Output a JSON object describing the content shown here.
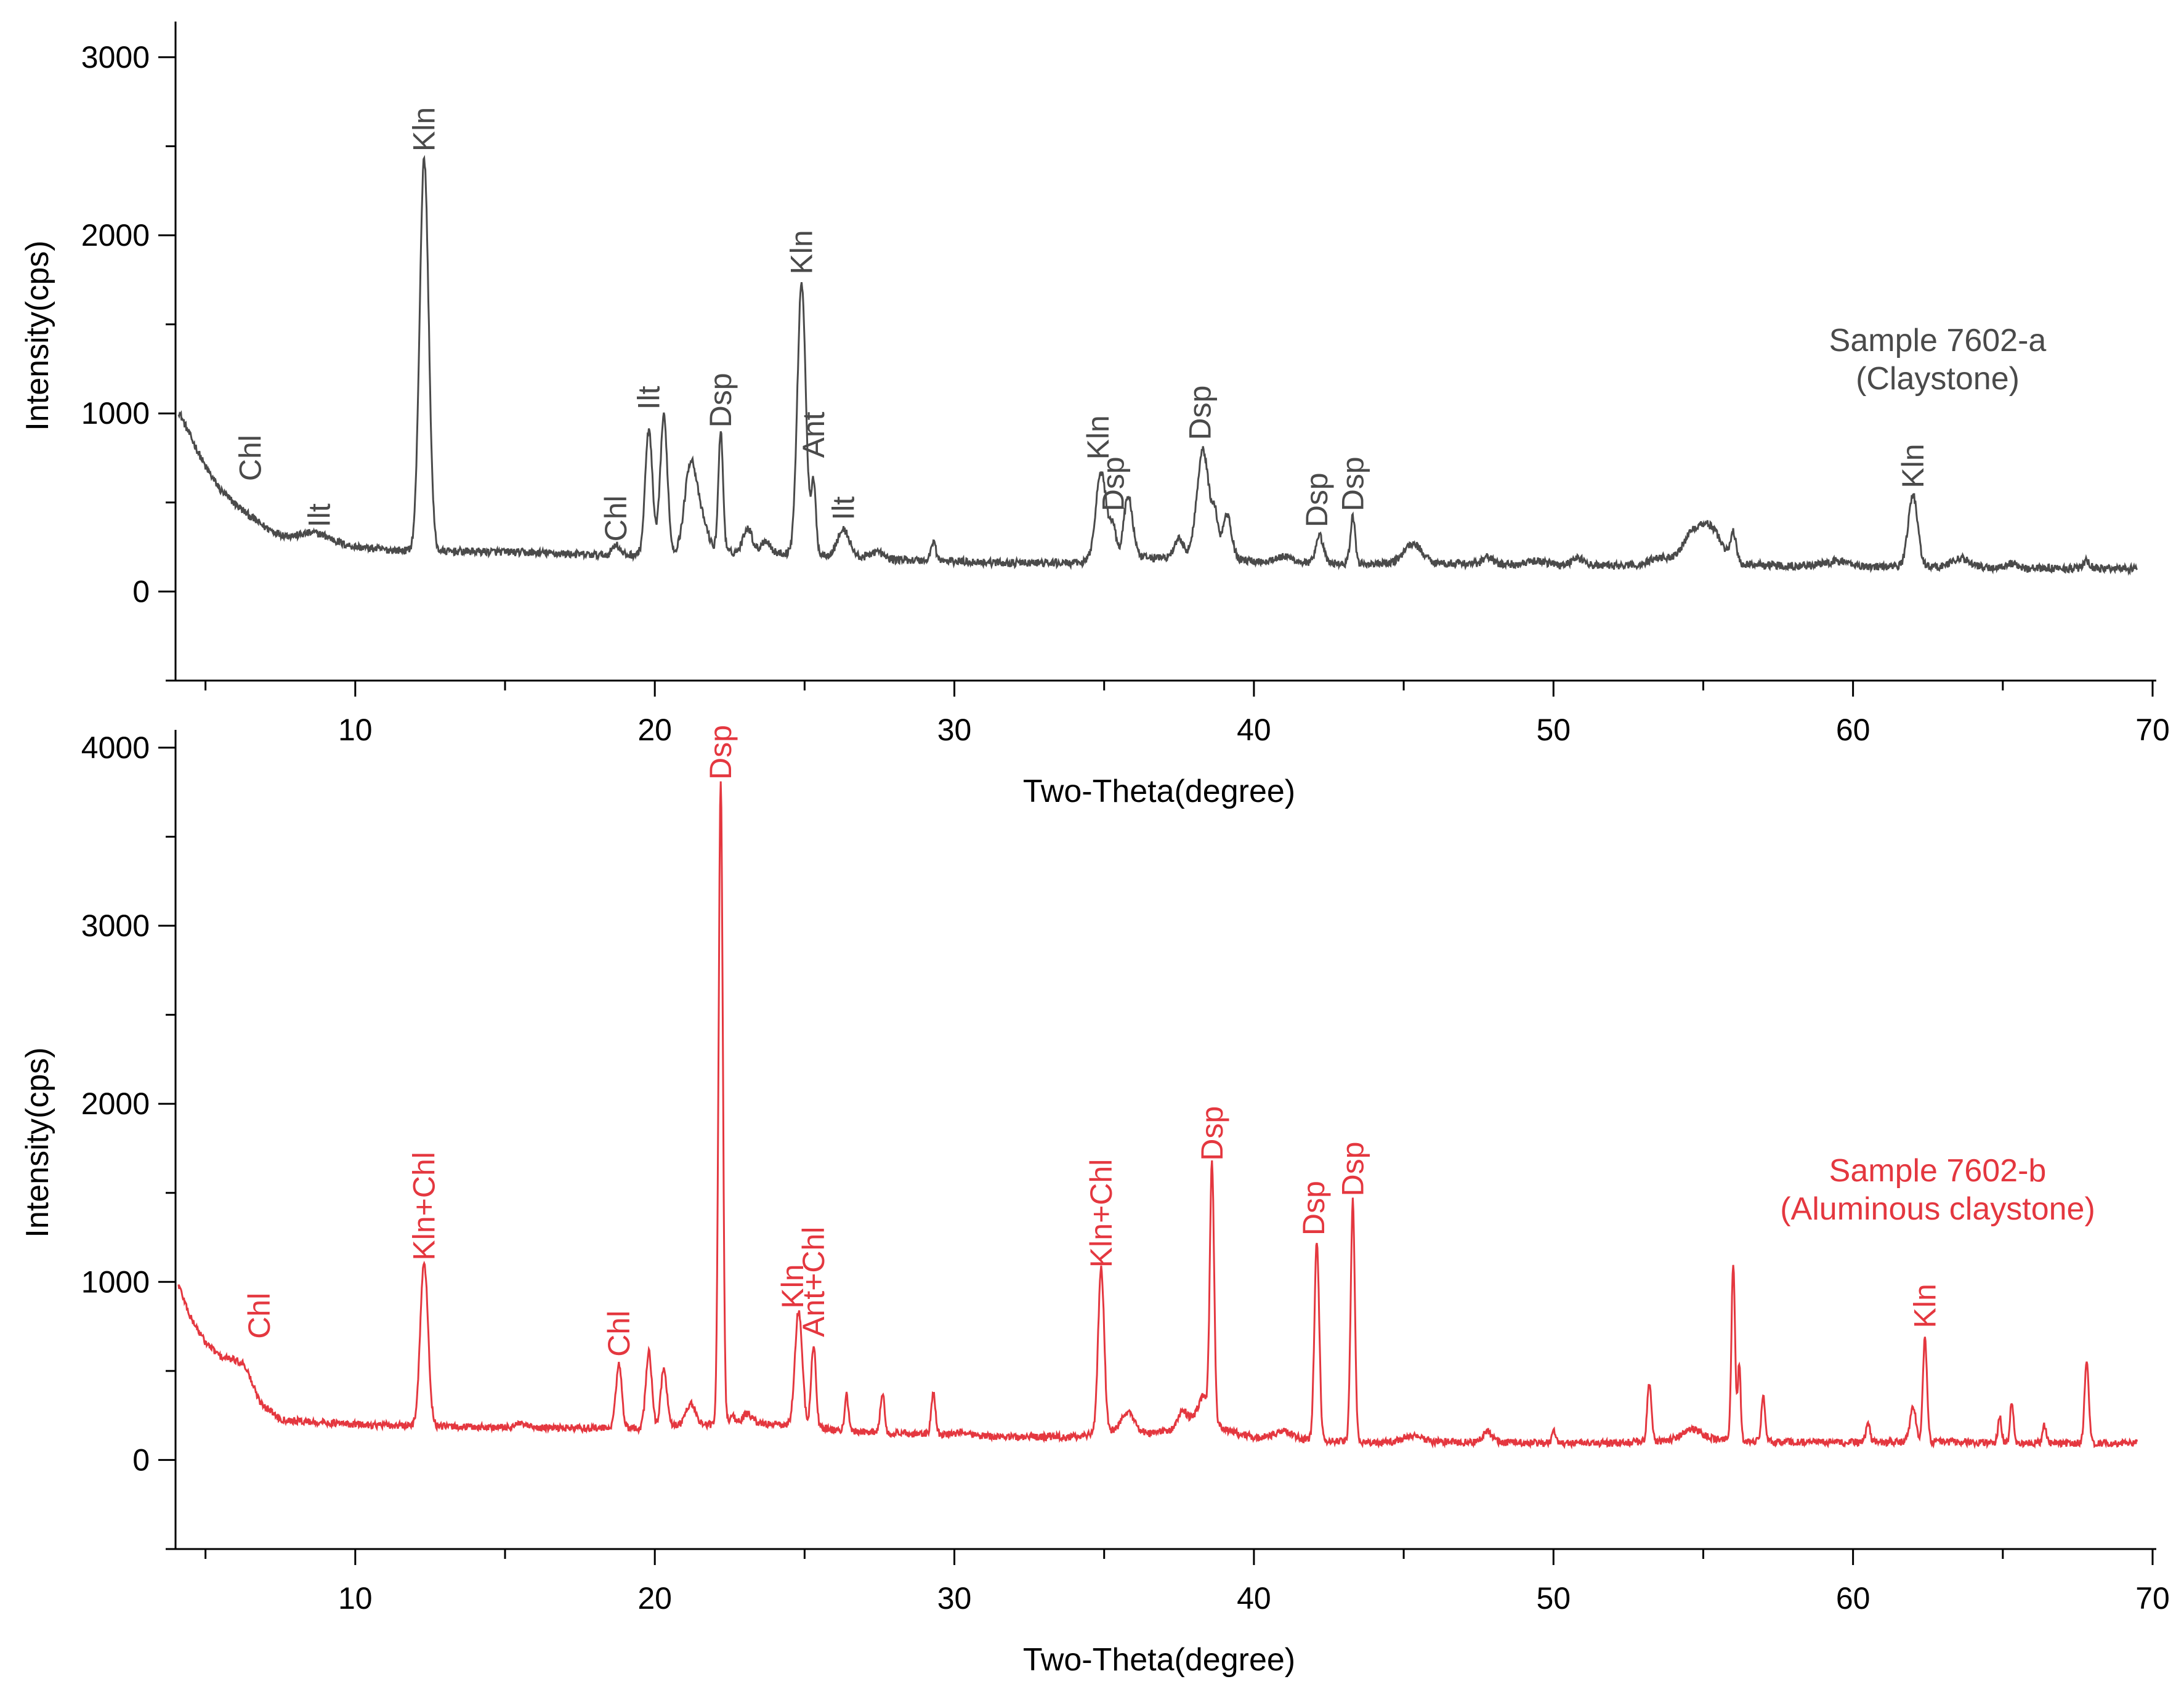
{
  "chart_data": [
    {
      "type": "line",
      "xlabel": "Two-Theta(degree)",
      "ylabel": "Intensity(cps)",
      "xlim": [
        4,
        70
      ],
      "ylim": [
        -500,
        3200
      ],
      "xticks": [
        10,
        20,
        30,
        40,
        50,
        60,
        70
      ],
      "yticks": [
        0,
        1000,
        2000,
        3000
      ],
      "color": "#4a4a4a",
      "sample_label": [
        "Sample 7602-a",
        "(Claystone)"
      ],
      "baseline": [
        [
          4.0,
          1050
        ],
        [
          4.5,
          870
        ],
        [
          5.0,
          700
        ],
        [
          5.5,
          570
        ],
        [
          6.0,
          490
        ],
        [
          6.5,
          420
        ],
        [
          7.0,
          360
        ],
        [
          7.5,
          320
        ],
        [
          8.0,
          295
        ],
        [
          9.0,
          270
        ],
        [
          10.0,
          250
        ],
        [
          11.0,
          235
        ],
        [
          12.0,
          228
        ],
        [
          13.0,
          225
        ],
        [
          14.0,
          225
        ],
        [
          15.0,
          222
        ],
        [
          16.0,
          218
        ],
        [
          17.0,
          212
        ],
        [
          18.0,
          205
        ],
        [
          19.0,
          205
        ],
        [
          20.0,
          210
        ],
        [
          21.0,
          220
        ],
        [
          22.0,
          220
        ],
        [
          23.0,
          220
        ],
        [
          24.0,
          215
        ],
        [
          25.0,
          215
        ],
        [
          26.0,
          200
        ],
        [
          27.0,
          190
        ],
        [
          28.0,
          180
        ],
        [
          29.0,
          175
        ],
        [
          30.0,
          170
        ],
        [
          32.0,
          160
        ],
        [
          34.0,
          160
        ],
        [
          35.0,
          170
        ],
        [
          36.0,
          190
        ],
        [
          37.0,
          190
        ],
        [
          38.0,
          200
        ],
        [
          39.0,
          190
        ],
        [
          40.0,
          170
        ],
        [
          41.0,
          165
        ],
        [
          42.0,
          160
        ],
        [
          44.0,
          155
        ],
        [
          46.0,
          160
        ],
        [
          48.0,
          155
        ],
        [
          50.0,
          150
        ],
        [
          52.0,
          145
        ],
        [
          54.0,
          150
        ],
        [
          55.0,
          160
        ],
        [
          56.0,
          155
        ],
        [
          58.0,
          145
        ],
        [
          60.0,
          140
        ],
        [
          62.0,
          140
        ],
        [
          64.0,
          135
        ],
        [
          66.0,
          130
        ],
        [
          68.0,
          130
        ],
        [
          69.5,
          130
        ]
      ],
      "peaks": [
        [
          8.7,
          50,
          0.5
        ],
        [
          12.3,
          2200,
          0.15
        ],
        [
          18.7,
          60,
          0.12
        ],
        [
          19.8,
          700,
          0.12
        ],
        [
          20.3,
          770,
          0.12
        ],
        [
          21.2,
          500,
          0.2
        ],
        [
          21.6,
          150,
          0.2
        ],
        [
          22.2,
          670,
          0.08
        ],
        [
          23.1,
          140,
          0.15
        ],
        [
          23.7,
          70,
          0.15
        ],
        [
          24.9,
          1520,
          0.14
        ],
        [
          25.3,
          390,
          0.08
        ],
        [
          26.3,
          150,
          0.2
        ],
        [
          27.4,
          40,
          0.2
        ],
        [
          29.3,
          110,
          0.08
        ],
        [
          34.9,
          500,
          0.18
        ],
        [
          35.3,
          180,
          0.1
        ],
        [
          35.8,
          350,
          0.15
        ],
        [
          37.5,
          100,
          0.15
        ],
        [
          38.3,
          600,
          0.2
        ],
        [
          38.7,
          200,
          0.1
        ],
        [
          39.1,
          250,
          0.15
        ],
        [
          41.0,
          30,
          0.3
        ],
        [
          42.2,
          150,
          0.12
        ],
        [
          43.3,
          260,
          0.08
        ],
        [
          45.3,
          110,
          0.3
        ],
        [
          47.8,
          40,
          0.15
        ],
        [
          49.5,
          20,
          0.3
        ],
        [
          50.8,
          40,
          0.2
        ],
        [
          53.5,
          40,
          0.3
        ],
        [
          54.8,
          200,
          0.45
        ],
        [
          55.4,
          100,
          0.3
        ],
        [
          56.0,
          160,
          0.1
        ],
        [
          59.5,
          30,
          0.4
        ],
        [
          62.0,
          400,
          0.16
        ],
        [
          63.6,
          50,
          0.3
        ],
        [
          65.3,
          25,
          0.2
        ],
        [
          67.8,
          40,
          0.1
        ]
      ],
      "annotations": [
        {
          "text": "Chl",
          "x": 6.5,
          "y": 620
        },
        {
          "text": "Ilt",
          "x": 8.8,
          "y": 360
        },
        {
          "text": "Kln",
          "x": 12.3,
          "y": 2470
        },
        {
          "text": "Chl",
          "x": 18.7,
          "y": 280
        },
        {
          "text": "Ilt",
          "x": 19.8,
          "y": 1020
        },
        {
          "text": "Dsp",
          "x": 22.2,
          "y": 920
        },
        {
          "text": "Kln",
          "x": 24.9,
          "y": 1780
        },
        {
          "text": "Ant",
          "x": 25.3,
          "y": 750
        },
        {
          "text": "Ilt",
          "x": 26.3,
          "y": 400
        },
        {
          "text": "Kln",
          "x": 34.8,
          "y": 740
        },
        {
          "text": "Dsp",
          "x": 35.3,
          "y": 450
        },
        {
          "text": "Dsp",
          "x": 38.2,
          "y": 850
        },
        {
          "text": "Dsp",
          "x": 42.1,
          "y": 360
        },
        {
          "text": "Dsp",
          "x": 43.3,
          "y": 450
        },
        {
          "text": "Kln",
          "x": 62.0,
          "y": 580
        }
      ]
    },
    {
      "type": "line",
      "xlabel": "Two-Theta(degree)",
      "ylabel": "Intensity(cps)",
      "xlim": [
        4,
        70
      ],
      "ylim": [
        -500,
        4100
      ],
      "xticks": [
        10,
        20,
        30,
        40,
        50,
        60,
        70
      ],
      "yticks": [
        0,
        1000,
        2000,
        3000,
        4000
      ],
      "color": "#e4373f",
      "sample_label": [
        "Sample 7602-b",
        "(Aluminous claystone)"
      ],
      "baseline": [
        [
          4.0,
          1030
        ],
        [
          4.5,
          800
        ],
        [
          5.0,
          660
        ],
        [
          5.5,
          580
        ],
        [
          6.0,
          560
        ],
        [
          6.3,
          540
        ],
        [
          6.8,
          330
        ],
        [
          7.5,
          230
        ],
        [
          8.0,
          220
        ],
        [
          9.0,
          210
        ],
        [
          10.0,
          200
        ],
        [
          12.0,
          190
        ],
        [
          14.0,
          185
        ],
        [
          16.0,
          180
        ],
        [
          18.0,
          180
        ],
        [
          19.0,
          175
        ],
        [
          20.0,
          180
        ],
        [
          21.0,
          200
        ],
        [
          22.0,
          200
        ],
        [
          23.0,
          210
        ],
        [
          24.0,
          200
        ],
        [
          25.0,
          190
        ],
        [
          26.0,
          170
        ],
        [
          28.0,
          150
        ],
        [
          30.0,
          140
        ],
        [
          32.0,
          130
        ],
        [
          34.0,
          130
        ],
        [
          35.5,
          170
        ],
        [
          36.5,
          150
        ],
        [
          37.5,
          170
        ],
        [
          38.3,
          280
        ],
        [
          39.0,
          170
        ],
        [
          40.0,
          130
        ],
        [
          42.0,
          110
        ],
        [
          44.0,
          100
        ],
        [
          46.0,
          100
        ],
        [
          48.0,
          100
        ],
        [
          50.0,
          95
        ],
        [
          52.0,
          95
        ],
        [
          54.0,
          110
        ],
        [
          55.0,
          120
        ],
        [
          56.0,
          110
        ],
        [
          58.0,
          100
        ],
        [
          60.0,
          100
        ],
        [
          62.0,
          100
        ],
        [
          64.0,
          100
        ],
        [
          66.0,
          95
        ],
        [
          68.0,
          95
        ],
        [
          69.5,
          95
        ]
      ],
      "peaks": [
        [
          12.3,
          920,
          0.13
        ],
        [
          15.5,
          20,
          0.2
        ],
        [
          18.8,
          360,
          0.1
        ],
        [
          19.8,
          430,
          0.1
        ],
        [
          20.3,
          330,
          0.1
        ],
        [
          21.2,
          120,
          0.15
        ],
        [
          22.2,
          3620,
          0.07
        ],
        [
          22.6,
          40,
          0.1
        ],
        [
          23.1,
          50,
          0.15
        ],
        [
          24.8,
          650,
          0.12
        ],
        [
          25.3,
          460,
          0.08
        ],
        [
          26.4,
          200,
          0.06
        ],
        [
          27.6,
          220,
          0.07
        ],
        [
          29.3,
          230,
          0.07
        ],
        [
          30.3,
          20,
          0.2
        ],
        [
          34.9,
          930,
          0.1
        ],
        [
          35.8,
          100,
          0.2
        ],
        [
          37.6,
          90,
          0.15
        ],
        [
          38.3,
          80,
          0.15
        ],
        [
          38.6,
          1440,
          0.07
        ],
        [
          41.0,
          40,
          0.3
        ],
        [
          42.1,
          1120,
          0.08
        ],
        [
          43.3,
          1350,
          0.07
        ],
        [
          45.3,
          40,
          0.3
        ],
        [
          47.8,
          60,
          0.15
        ],
        [
          50.0,
          70,
          0.06
        ],
        [
          53.2,
          330,
          0.07
        ],
        [
          54.6,
          60,
          0.3
        ],
        [
          56.0,
          990,
          0.06
        ],
        [
          56.2,
          420,
          0.05
        ],
        [
          57.0,
          250,
          0.06
        ],
        [
          60.5,
          100,
          0.07
        ],
        [
          62.0,
          200,
          0.1
        ],
        [
          62.4,
          580,
          0.07
        ],
        [
          64.9,
          140,
          0.06
        ],
        [
          65.3,
          230,
          0.06
        ],
        [
          66.4,
          100,
          0.06
        ],
        [
          67.8,
          470,
          0.07
        ]
      ],
      "annotations": [
        {
          "text": "Chl",
          "x": 6.8,
          "y": 680
        },
        {
          "text": "Kln+Chl",
          "x": 12.3,
          "y": 1120
        },
        {
          "text": "Chl",
          "x": 18.8,
          "y": 580
        },
        {
          "text": "Dsp",
          "x": 22.2,
          "y": 3820
        },
        {
          "text": "Kln",
          "x": 24.6,
          "y": 850
        },
        {
          "text": "Ant+Chl",
          "x": 25.3,
          "y": 690
        },
        {
          "text": "Kln+Chl",
          "x": 34.9,
          "y": 1080
        },
        {
          "text": "Dsp",
          "x": 38.6,
          "y": 1680
        },
        {
          "text": "Dsp",
          "x": 42.0,
          "y": 1260
        },
        {
          "text": "Dsp",
          "x": 43.3,
          "y": 1480
        },
        {
          "text": "Kln",
          "x": 62.4,
          "y": 740
        }
      ]
    }
  ]
}
